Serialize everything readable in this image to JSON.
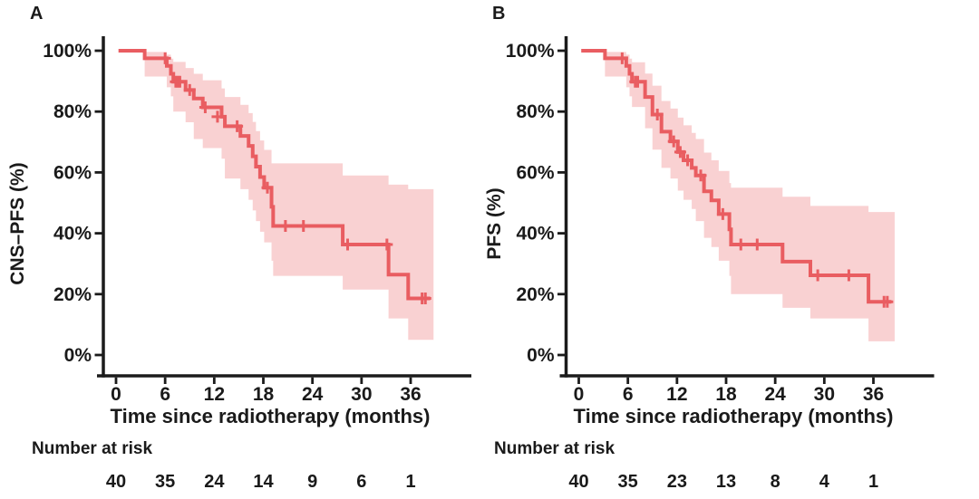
{
  "figure": {
    "background": "#FFFFFF",
    "description": "Two-panel Kaplan-Meier survival figure with 95% confidence bands and censoring marks"
  },
  "colors": {
    "curve": "#E95D61",
    "band_fill": "rgba(233,90,95,0.28)",
    "axis": "#1B1B1B",
    "text": "#1A1A1A"
  },
  "chart_data": [
    {
      "type": "line",
      "subtype": "kaplan-meier-step",
      "letter": "A",
      "ylabel": "CNS–PFS (%)",
      "xlabel": "Time since radiotherapy (months)",
      "risk_label": "Number at risk",
      "risk_values": [
        "40",
        "35",
        "24",
        "14",
        "9",
        "6",
        "1"
      ],
      "x_ticks": [
        0,
        6,
        12,
        18,
        24,
        30,
        36
      ],
      "y_ticks": [
        100,
        80,
        60,
        40,
        20,
        0
      ],
      "xlim": [
        0,
        43
      ],
      "ylim": [
        0,
        100
      ],
      "grid": "off",
      "end_time": 38.4,
      "steps": [
        [
          0.3,
          100
        ],
        [
          3.5,
          97.5
        ],
        [
          6.2,
          95.0
        ],
        [
          6.7,
          92.4
        ],
        [
          7.0,
          89.8
        ],
        [
          8.5,
          87.1
        ],
        [
          9.5,
          84.3
        ],
        [
          10.6,
          81.4
        ],
        [
          12.9,
          78.3
        ],
        [
          13.3,
          75.2
        ],
        [
          15.2,
          72.0
        ],
        [
          16.2,
          68.7
        ],
        [
          16.7,
          65.3
        ],
        [
          17.1,
          61.9
        ],
        [
          17.6,
          58.5
        ],
        [
          18.1,
          55.0
        ],
        [
          19.0,
          48.7
        ],
        [
          19.2,
          42.4
        ],
        [
          27.7,
          36.3
        ],
        [
          33.3,
          26.4
        ],
        [
          35.7,
          18.6
        ]
      ],
      "censors": [
        [
          6.0,
          97.5
        ],
        [
          7.3,
          89.8
        ],
        [
          7.55,
          89.8
        ],
        [
          7.8,
          89.8
        ],
        [
          9.0,
          87.1
        ],
        [
          10.9,
          81.4
        ],
        [
          12.4,
          78.3
        ],
        [
          14.8,
          75.2
        ],
        [
          18.5,
          55.0
        ],
        [
          20.7,
          42.4
        ],
        [
          22.9,
          42.4
        ],
        [
          28.3,
          36.3
        ],
        [
          33.1,
          36.3
        ],
        [
          37.4,
          18.6
        ],
        [
          37.8,
          18.6
        ]
      ],
      "band": [
        [
          3.5,
          91.5,
          99.6
        ],
        [
          6.2,
          88.0,
          98.7
        ],
        [
          6.7,
          85.0,
          97.4
        ],
        [
          7.0,
          80.0,
          96.3
        ],
        [
          8.5,
          76.5,
          94.3
        ],
        [
          9.5,
          71.0,
          92.4
        ],
        [
          10.6,
          68.0,
          90.3
        ],
        [
          12.9,
          64.5,
          87.6
        ],
        [
          13.3,
          58.0,
          84.8
        ],
        [
          15.2,
          54.5,
          82.2
        ],
        [
          16.2,
          51.0,
          79.5
        ],
        [
          16.7,
          47.5,
          76.6
        ],
        [
          17.1,
          44.0,
          73.6
        ],
        [
          17.6,
          40.5,
          70.5
        ],
        [
          18.1,
          37.0,
          67.4
        ],
        [
          19.0,
          31.0,
          63.0
        ],
        [
          19.2,
          26.0,
          63.0
        ],
        [
          27.7,
          21.5,
          59.0
        ],
        [
          33.3,
          12.0,
          56.0
        ],
        [
          35.7,
          5.0,
          54.5
        ]
      ]
    },
    {
      "type": "line",
      "subtype": "kaplan-meier-step",
      "letter": "B",
      "ylabel": "PFS (%)",
      "xlabel": "Time since radiotherapy (months)",
      "risk_label": "Number at risk",
      "risk_values": [
        "40",
        "35",
        "23",
        "13",
        "8",
        "4",
        "1"
      ],
      "x_ticks": [
        0,
        6,
        12,
        18,
        24,
        30,
        36
      ],
      "y_ticks": [
        100,
        80,
        60,
        40,
        20,
        0
      ],
      "xlim": [
        0,
        43
      ],
      "ylim": [
        0,
        100
      ],
      "grid": "off",
      "end_time": 38.2,
      "steps": [
        [
          0.3,
          100
        ],
        [
          3.2,
          97.5
        ],
        [
          5.8,
          95.0
        ],
        [
          6.2,
          92.4
        ],
        [
          6.5,
          89.8
        ],
        [
          8.1,
          84.8
        ],
        [
          9.0,
          79.0
        ],
        [
          10.1,
          73.4
        ],
        [
          11.2,
          70.2
        ],
        [
          12.1,
          66.7
        ],
        [
          12.8,
          64.0
        ],
        [
          13.8,
          61.5
        ],
        [
          14.3,
          59.0
        ],
        [
          15.3,
          53.8
        ],
        [
          16.2,
          50.8
        ],
        [
          17.1,
          46.3
        ],
        [
          18.4,
          41.3
        ],
        [
          18.6,
          36.3
        ],
        [
          24.9,
          30.7
        ],
        [
          28.3,
          26.2
        ],
        [
          35.4,
          17.5
        ]
      ],
      "censors": [
        [
          5.3,
          97.5
        ],
        [
          6.9,
          89.8
        ],
        [
          7.2,
          89.8
        ],
        [
          9.6,
          79.0
        ],
        [
          11.6,
          70.2
        ],
        [
          12.4,
          66.7
        ],
        [
          13.3,
          64.0
        ],
        [
          14.9,
          59.0
        ],
        [
          17.6,
          46.3
        ],
        [
          19.8,
          36.3
        ],
        [
          21.8,
          36.3
        ],
        [
          29.2,
          26.2
        ],
        [
          33.0,
          26.2
        ],
        [
          37.3,
          17.5
        ],
        [
          37.7,
          17.5
        ]
      ],
      "band": [
        [
          3.2,
          91.5,
          99.6
        ],
        [
          5.8,
          88.0,
          98.7
        ],
        [
          6.2,
          85.0,
          97.4
        ],
        [
          6.5,
          81.5,
          96.2
        ],
        [
          8.1,
          74.5,
          92.5
        ],
        [
          9.0,
          67.5,
          88.5
        ],
        [
          10.1,
          61.5,
          83.5
        ],
        [
          11.2,
          58.0,
          81.0
        ],
        [
          12.1,
          54.0,
          78.0
        ],
        [
          12.8,
          51.0,
          75.5
        ],
        [
          13.8,
          48.0,
          73.0
        ],
        [
          14.3,
          44.0,
          71.0
        ],
        [
          15.3,
          38.5,
          66.5
        ],
        [
          16.2,
          35.5,
          64.0
        ],
        [
          17.1,
          31.0,
          60.5
        ],
        [
          18.4,
          26.0,
          56.5
        ],
        [
          18.6,
          20.0,
          55.0
        ],
        [
          24.9,
          15.5,
          52.0
        ],
        [
          28.3,
          12.0,
          49.0
        ],
        [
          35.4,
          4.5,
          47.0
        ]
      ]
    }
  ]
}
